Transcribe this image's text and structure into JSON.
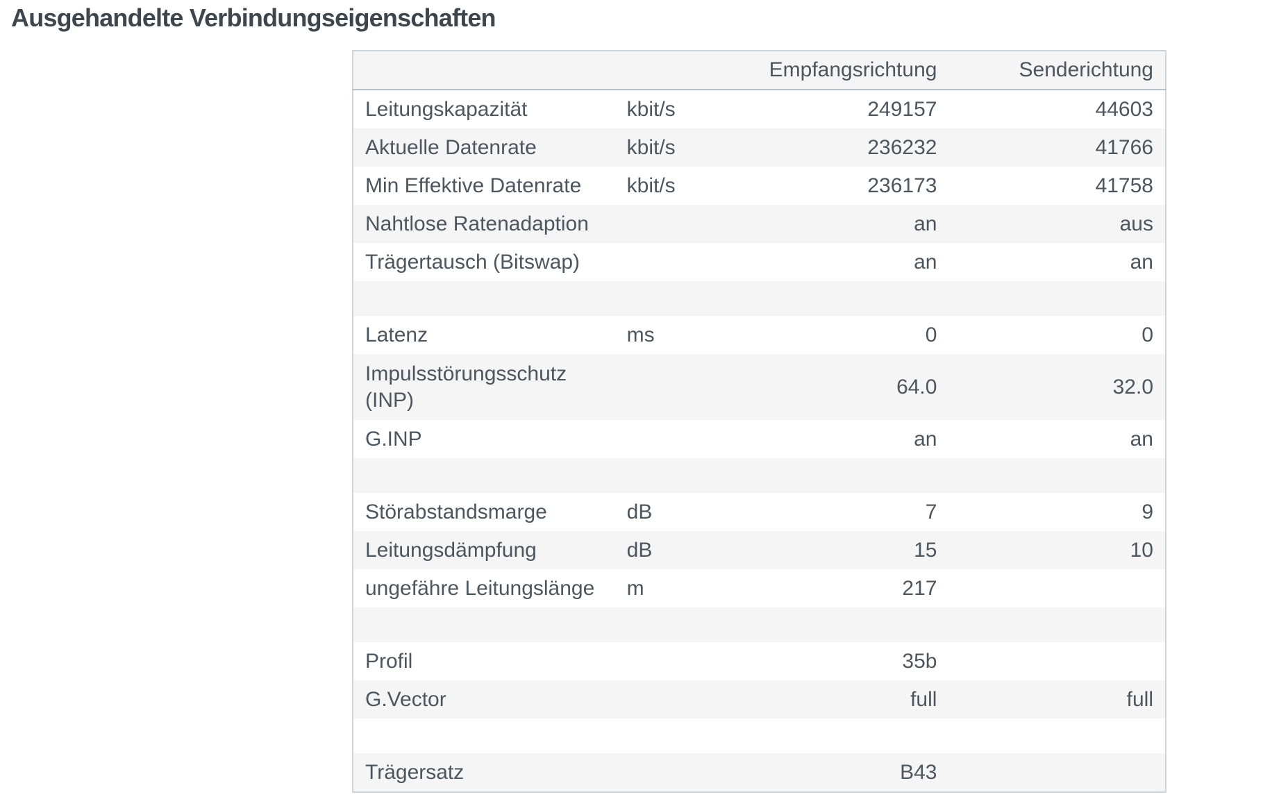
{
  "page": {
    "title": "Ausgehandelte Verbindungseigenschaften"
  },
  "theme": {
    "background": "#ffffff",
    "title": "#3d454d",
    "text": "#4c565e",
    "zebra": "#f5f5f5",
    "border": "#ccd5db",
    "header_border": "#b6c1c9"
  },
  "table": {
    "columns": {
      "label": "",
      "unit": "",
      "rx": "Empfangsrichtung",
      "tx": "Senderichtung"
    },
    "rows": [
      {
        "type": "data",
        "label": "Leitungskapazität",
        "unit": "kbit/s",
        "rx": "249157",
        "tx": "44603"
      },
      {
        "type": "data",
        "label": "Aktuelle Datenrate",
        "unit": "kbit/s",
        "rx": "236232",
        "tx": "41766"
      },
      {
        "type": "data",
        "label": "Min Effektive Datenrate",
        "unit": "kbit/s",
        "rx": "236173",
        "tx": "41758"
      },
      {
        "type": "data",
        "label": "Nahtlose Ratenadaption",
        "unit": "",
        "rx": "an",
        "tx": "aus"
      },
      {
        "type": "data",
        "label": "Trägertausch (Bitswap)",
        "unit": "",
        "rx": "an",
        "tx": "an"
      },
      {
        "type": "spacer",
        "label": "",
        "unit": "",
        "rx": "",
        "tx": ""
      },
      {
        "type": "data",
        "label": "Latenz",
        "unit": "ms",
        "rx": "0",
        "tx": "0"
      },
      {
        "type": "tall",
        "label": "Impulsstörungsschutz (INP)",
        "unit": "",
        "rx": "64.0",
        "tx": "32.0"
      },
      {
        "type": "data",
        "label": "G.INP",
        "unit": "",
        "rx": "an",
        "tx": "an"
      },
      {
        "type": "spacer",
        "label": "",
        "unit": "",
        "rx": "",
        "tx": ""
      },
      {
        "type": "data",
        "label": "Störabstandsmarge",
        "unit": "dB",
        "rx": "7",
        "tx": "9"
      },
      {
        "type": "data",
        "label": "Leitungsdämpfung",
        "unit": "dB",
        "rx": "15",
        "tx": "10"
      },
      {
        "type": "data",
        "label": "ungefähre Leitungslänge",
        "unit": "m",
        "rx": "217",
        "tx": ""
      },
      {
        "type": "spacer",
        "label": "",
        "unit": "",
        "rx": "",
        "tx": ""
      },
      {
        "type": "data",
        "label": "Profil",
        "unit": "",
        "rx": "35b",
        "tx": ""
      },
      {
        "type": "data",
        "label": "G.Vector",
        "unit": "",
        "rx": "full",
        "tx": "full"
      },
      {
        "type": "spacer",
        "label": "",
        "unit": "",
        "rx": "",
        "tx": ""
      },
      {
        "type": "data",
        "label": "Trägersatz",
        "unit": "",
        "rx": "B43",
        "tx": ""
      }
    ]
  }
}
